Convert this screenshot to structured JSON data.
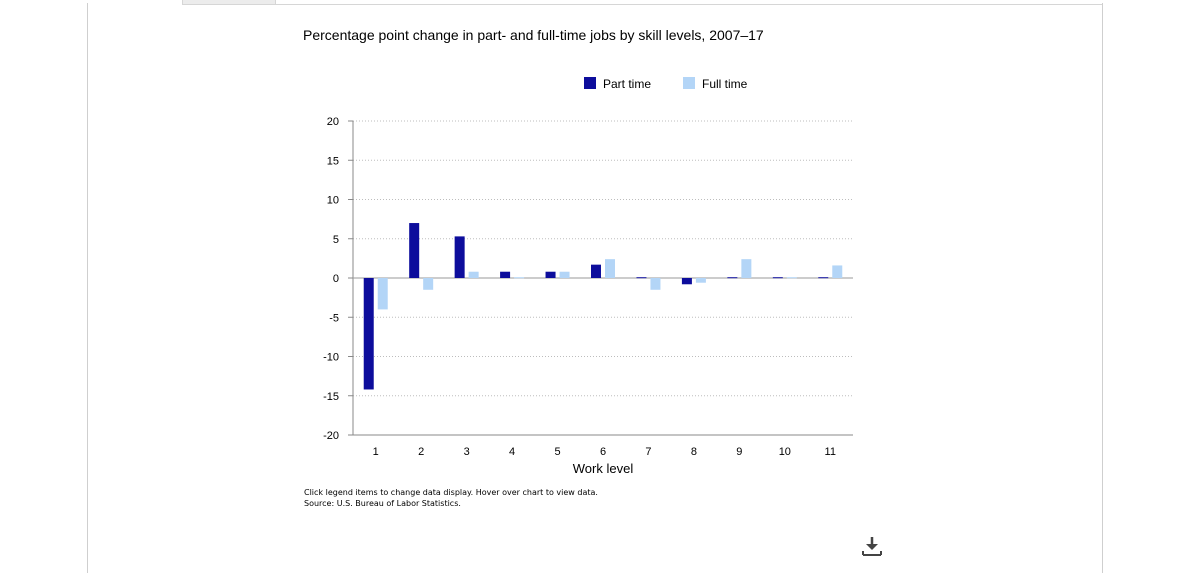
{
  "chart_data": {
    "type": "bar",
    "title": "Percentage point change in part- and full-time jobs by skill levels, 2007–17",
    "xlabel": "Work level",
    "ylabel": "",
    "categories": [
      "1",
      "2",
      "3",
      "4",
      "5",
      "6",
      "7",
      "8",
      "9",
      "10",
      "11"
    ],
    "series": [
      {
        "name": "Part time",
        "color": "#0d0d9c",
        "values": [
          -14.2,
          7.0,
          5.3,
          0.8,
          0.8,
          1.7,
          0.1,
          -0.8,
          0.1,
          0.1,
          0.1
        ]
      },
      {
        "name": "Full time",
        "color": "#b3d5f7",
        "values": [
          -4.0,
          -1.5,
          0.8,
          0.1,
          0.8,
          2.4,
          -1.5,
          -0.6,
          2.4,
          0.1,
          1.6
        ]
      }
    ],
    "yticks": [
      "20",
      "15",
      "10",
      "5",
      "0",
      "-5",
      "-10",
      "-15",
      "-20"
    ],
    "ylim": [
      -20,
      20
    ],
    "grid": true,
    "legend_position": "top"
  },
  "notes": {
    "line1": "Click legend items to change data display. Hover over chart to view data.",
    "line2": "Source: U.S. Bureau of Labor Statistics."
  },
  "icons": {
    "download": "download-icon"
  }
}
